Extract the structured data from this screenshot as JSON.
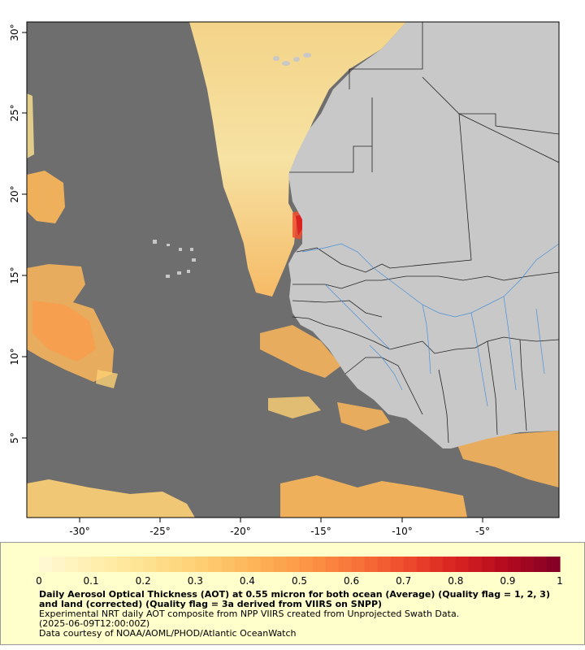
{
  "map": {
    "x_ticks": [
      "-30°",
      "-25°",
      "-20°",
      "-15°",
      "-10°",
      "-5°"
    ],
    "y_ticks": [
      "30°",
      "25°",
      "20°",
      "15°",
      "10°",
      "5°"
    ],
    "colors": {
      "no_data": "#6e6e6e",
      "land": "#c8c8c8",
      "border": "#222222",
      "river": "#4a90d9"
    }
  },
  "legend": {
    "ticks": [
      "0",
      "0.1",
      "0.2",
      "0.3",
      "0.4",
      "0.5",
      "0.6",
      "0.7",
      "0.8",
      "0.9",
      "1"
    ],
    "colors": [
      "#fff9d6",
      "#ffefb0",
      "#fee391",
      "#fed176",
      "#fdb75a",
      "#fc9a48",
      "#f8773a",
      "#ef4d2d",
      "#d92320",
      "#b2091f",
      "#800026"
    ],
    "title": "Daily Aerosol Optical Thickness (AOT) at 0.55 micron for both ocean (Average) (Quality flag = 1, 2, 3) and land (corrected) (Quality flag = 3a derived from VIIRS on SNPP)",
    "subtitle": "Experimental NRT daily AOT composite from NPP VIIRS created from Unprojected Swath Data.",
    "date": "(2025-06-09T12:00:00Z)",
    "credit": "Data courtesy of NOAA/AOML/PHOD/Atlantic OceanWatch"
  }
}
